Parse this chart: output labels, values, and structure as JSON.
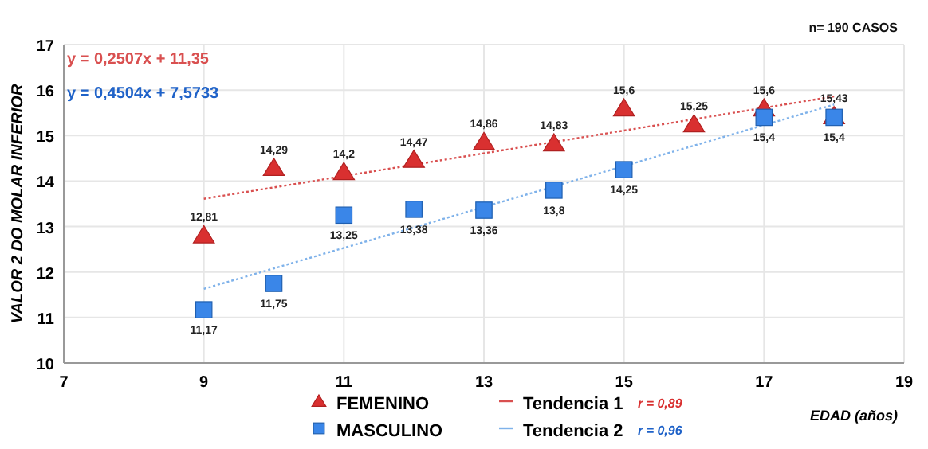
{
  "chart_data": {
    "type": "scatter",
    "xlabel": "EDAD (años)",
    "ylabel": "VALOR 2 DO MOLAR INFERIOR",
    "xlim": [
      7,
      19
    ],
    "ylim": [
      10,
      17
    ],
    "xticks": [
      7,
      9,
      11,
      13,
      15,
      17,
      19
    ],
    "yticks": [
      10,
      11,
      12,
      13,
      14,
      15,
      16,
      17
    ],
    "grid": true,
    "legend": "bottom",
    "series": [
      {
        "name": "FEMENINO",
        "marker": "triangle",
        "color": "#d93030",
        "x": [
          9,
          10,
          11,
          12,
          13,
          14,
          15,
          16,
          17,
          18
        ],
        "values": [
          12.81,
          14.29,
          14.2,
          14.47,
          14.86,
          14.83,
          15.6,
          15.25,
          15.6,
          15.43
        ],
        "value_labels": [
          "12,81",
          "14,29",
          "14,2",
          "14,47",
          "14,86",
          "14,83",
          "15,6",
          "15,25",
          "15,6",
          "15,43"
        ]
      },
      {
        "name": "MASCULINO",
        "marker": "square",
        "color": "#3a86e8",
        "x": [
          9,
          10,
          11,
          12,
          13,
          14,
          15,
          17,
          18
        ],
        "values": [
          11.17,
          11.75,
          13.25,
          13.38,
          13.36,
          13.8,
          14.25,
          15.4,
          15.4
        ],
        "value_labels": [
          "11,17",
          "11,75",
          "13,25",
          "13,38",
          "13,36",
          "13,8",
          "14,25",
          "15,4",
          "15,4"
        ]
      },
      {
        "name": "Tendencia 1",
        "type": "line",
        "marker": "none",
        "line_style": "dotted",
        "color": "#d95050",
        "x": [
          9,
          18
        ],
        "values": [
          13.61,
          15.86
        ]
      },
      {
        "name": "Tendencia 2",
        "type": "line",
        "marker": "none",
        "line_style": "dotted",
        "color": "#7fb2ea",
        "x": [
          9,
          18
        ],
        "values": [
          11.63,
          15.68
        ]
      }
    ],
    "annotations": [
      "y = 0,2507x + 11,35",
      "y = 0,4504x + 7,5733",
      "n= 190 CASOS",
      "r = 0,89",
      "r = 0,96"
    ]
  }
}
